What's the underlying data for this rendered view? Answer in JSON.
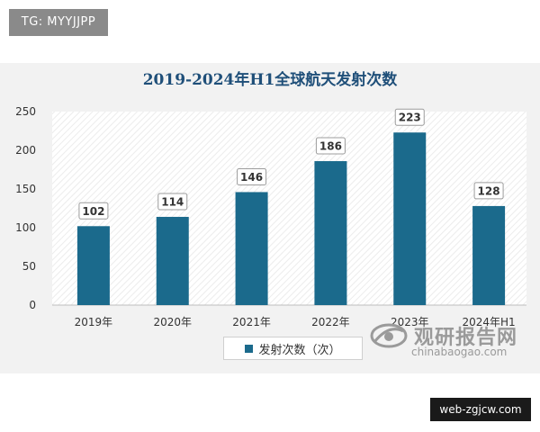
{
  "header_tag": "TG: MYYJJPP",
  "footer_tag": "web-zgjcw.com",
  "watermark": {
    "name": "观研报告网",
    "url": "chinabaogao.com"
  },
  "colors": {
    "bar": "#1b6a8c",
    "title": "#1f4f79"
  },
  "chart_data": {
    "type": "bar",
    "title": "2019-2024年H1全球航天发射次数",
    "categories": [
      "2019年",
      "2020年",
      "2021年",
      "2022年",
      "2023年",
      "2024年H1"
    ],
    "series": [
      {
        "name": "发射次数（次）",
        "values": [
          102,
          114,
          146,
          186,
          223,
          128
        ]
      }
    ],
    "xlabel": "",
    "ylabel": "",
    "ylim": [
      0,
      250
    ],
    "yticks": [
      0,
      50,
      100,
      150,
      200,
      250
    ],
    "legend": "bottom-center",
    "data_labels": true,
    "grid": false
  }
}
